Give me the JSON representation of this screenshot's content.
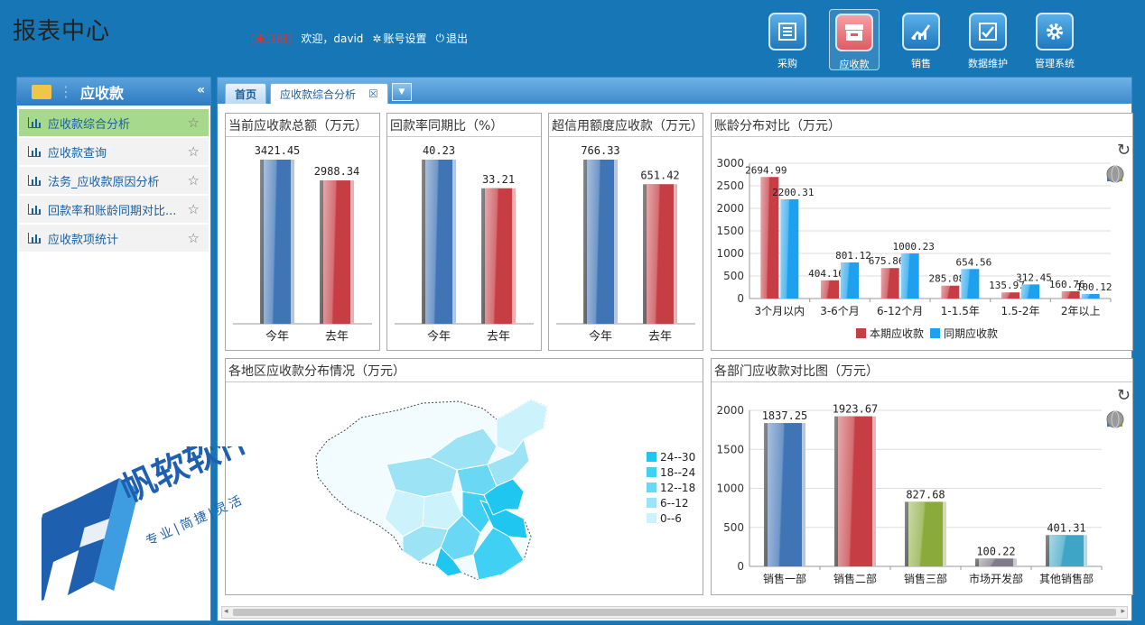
{
  "app": {
    "title": "报表中心"
  },
  "user": {
    "unregistered": "[未注册]",
    "greeting": "欢迎，david",
    "account": "账号设置",
    "logout": "退出"
  },
  "nav": [
    {
      "label": "采购",
      "icon": "list-icon",
      "color": "#2d86c6"
    },
    {
      "label": "应收款",
      "icon": "inbox-icon",
      "color": "#e8626a"
    },
    {
      "label": "销售",
      "icon": "chart-up-icon",
      "color": "#2d86c6"
    },
    {
      "label": "数据维护",
      "icon": "check-chart-icon",
      "color": "#2d86c6"
    },
    {
      "label": "管理系统",
      "icon": "gear-icon",
      "color": "#2d86c6"
    }
  ],
  "sidebar": {
    "title": "应收款",
    "collapse": "«",
    "items": [
      {
        "label": "应收款综合分析"
      },
      {
        "label": "应收款查询"
      },
      {
        "label": "法务_应收款原因分析"
      },
      {
        "label": "回款率和账龄同期对比..."
      },
      {
        "label": "应收款项统计"
      }
    ]
  },
  "tabs": {
    "home": "首页",
    "current": "应收款综合分析",
    "close": "☒",
    "dropdown": "▼"
  },
  "panels": {
    "p1": {
      "title": "当前应收款总额（万元）"
    },
    "p2": {
      "title": "回款率同期比（%）"
    },
    "p3": {
      "title": "超信用额度应收款（万元）"
    },
    "p4": {
      "title": "账龄分布对比（万元）"
    },
    "p5": {
      "title": "各地区应收款分布情况（万元）"
    },
    "p6": {
      "title": "各部门应收款对比图（万元）"
    }
  },
  "watermark": {
    "brand": "帆软软件",
    "slogan": "专业|简捷|灵活"
  },
  "chart_data": [
    {
      "type": "bar",
      "categories": [
        "今年",
        "去年"
      ],
      "values": [
        3421.45,
        2988.34
      ],
      "value_labels": [
        "3421.45",
        "2988.34"
      ],
      "colors": [
        "#3f74b5",
        "#c63e44"
      ]
    },
    {
      "type": "bar",
      "categories": [
        "今年",
        "去年"
      ],
      "values": [
        40.23,
        33.21
      ],
      "value_labels": [
        "40.23",
        "33.21"
      ],
      "colors": [
        "#3f74b5",
        "#c63e44"
      ]
    },
    {
      "type": "bar",
      "categories": [
        "今年",
        "去年"
      ],
      "values": [
        766.33,
        651.42
      ],
      "value_labels": [
        "766.33",
        "651.42"
      ],
      "colors": [
        "#3f74b5",
        "#c63e44"
      ]
    },
    {
      "type": "bar",
      "categories": [
        "3个月以内",
        "3-6个月",
        "6-12个月",
        "1-1.5年",
        "1.5-2年",
        "2年以上"
      ],
      "series": [
        {
          "name": "本期应收款",
          "values": [
            2694.99,
            404.16,
            675.86,
            285.08,
            135.97,
            160.76
          ],
          "value_labels": [
            "2694.99",
            "404.16",
            "675.86",
            "285.08",
            "135.97",
            "160.76"
          ],
          "color": "#c63e44"
        },
        {
          "name": "同期应收款",
          "values": [
            2200.31,
            801.12,
            1000.23,
            654.56,
            312.45,
            100.12
          ],
          "value_labels": [
            "2200.31",
            "801.12",
            "1000.23",
            "654.56",
            "312.45",
            "100.12"
          ],
          "color": "#1da1ee"
        }
      ],
      "ylim": [
        0,
        3000
      ],
      "yticks": [
        "0",
        "500",
        "1000",
        "1500",
        "2000",
        "2500",
        "3000"
      ],
      "grid": true,
      "legend": "bottom"
    },
    {
      "type": "map",
      "legend": [
        "24--30",
        "18--24",
        "12--18",
        "6--12",
        "0--6"
      ],
      "legend_colors": [
        "#1ec6f0",
        "#3fd0f4",
        "#6ad8f4",
        "#9be3f5",
        "#ccf2fb"
      ]
    },
    {
      "type": "bar",
      "categories": [
        "销售一部",
        "销售二部",
        "销售三部",
        "市场开发部",
        "其他销售部"
      ],
      "values": [
        1837.25,
        1923.67,
        827.68,
        100.22,
        401.31
      ],
      "value_labels": [
        "1837.25",
        "1923.67",
        "827.68",
        "100.22",
        "401.31"
      ],
      "colors": [
        "#3f74b5",
        "#c63e44",
        "#8aab3c",
        "#807b8a",
        "#3ea5c6"
      ],
      "ylim": [
        0,
        2000
      ],
      "yticks": [
        "0",
        "500",
        "1000",
        "1500",
        "2000"
      ],
      "grid": true
    }
  ]
}
